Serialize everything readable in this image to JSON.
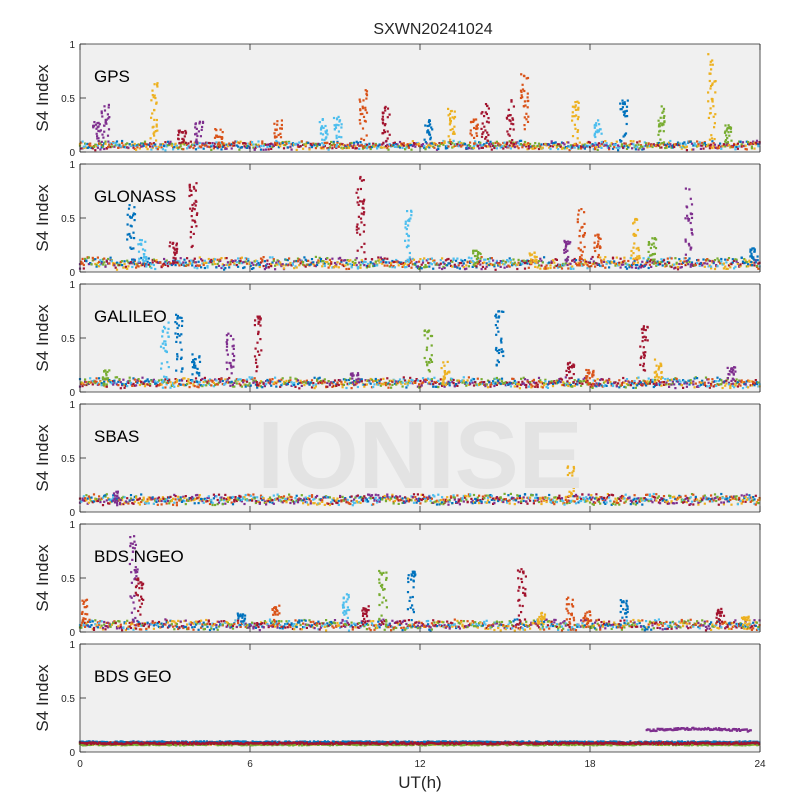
{
  "figure": {
    "title": "SXWN20241024",
    "watermark": "IONISE",
    "xlabel": "UT(h)",
    "ylabel": "S4 Index"
  },
  "colors": {
    "axes_bg": "#f0f0f0",
    "axis_line": "#262626",
    "watermark": "#e3e3e3",
    "series": [
      "#0072BD",
      "#D95319",
      "#EDB120",
      "#7E2F8E",
      "#77AC30",
      "#4DBEEE",
      "#A2142F"
    ]
  },
  "chart_data": [
    {
      "type": "scatter",
      "panel": "GPS",
      "label": "GPS",
      "xlim": [
        0,
        24
      ],
      "ylim": [
        0,
        1
      ],
      "yticks": [
        0,
        0.5,
        1
      ],
      "ytick_labels": [
        "0",
        "0.5",
        "1"
      ],
      "baseline": [
        0.03,
        0.09
      ],
      "spikes": [
        [
          0.6,
          0.28,
          3
        ],
        [
          0.9,
          0.45,
          3
        ],
        [
          2.6,
          0.65,
          2
        ],
        [
          3.6,
          0.2,
          6
        ],
        [
          4.2,
          0.28,
          3
        ],
        [
          4.9,
          0.22,
          1
        ],
        [
          7.0,
          0.3,
          1
        ],
        [
          8.6,
          0.32,
          5
        ],
        [
          9.1,
          0.33,
          5
        ],
        [
          10.0,
          0.58,
          1
        ],
        [
          10.8,
          0.42,
          6
        ],
        [
          12.3,
          0.3,
          0
        ],
        [
          13.1,
          0.4,
          2
        ],
        [
          13.9,
          0.32,
          1
        ],
        [
          14.3,
          0.45,
          6
        ],
        [
          15.2,
          0.48,
          6
        ],
        [
          15.7,
          0.74,
          1
        ],
        [
          17.5,
          0.47,
          2
        ],
        [
          18.3,
          0.3,
          5
        ],
        [
          19.2,
          0.48,
          0
        ],
        [
          20.5,
          0.45,
          4
        ],
        [
          22.3,
          0.92,
          2
        ],
        [
          22.9,
          0.25,
          4
        ]
      ]
    },
    {
      "type": "scatter",
      "panel": "GLONASS",
      "label": "GLONASS",
      "xlim": [
        0,
        24
      ],
      "ylim": [
        0,
        1
      ],
      "yticks": [
        0,
        0.5,
        1
      ],
      "ytick_labels": [
        "0",
        "0.5",
        "1"
      ],
      "baseline": [
        0.04,
        0.12
      ],
      "spikes": [
        [
          1.8,
          0.62,
          0
        ],
        [
          2.2,
          0.3,
          5
        ],
        [
          3.3,
          0.28,
          6
        ],
        [
          4.0,
          0.85,
          6
        ],
        [
          9.9,
          0.88,
          6
        ],
        [
          11.6,
          0.58,
          5
        ],
        [
          14.0,
          0.2,
          4
        ],
        [
          16.0,
          0.18,
          2
        ],
        [
          17.2,
          0.3,
          3
        ],
        [
          17.7,
          0.62,
          1
        ],
        [
          18.3,
          0.35,
          1
        ],
        [
          19.6,
          0.52,
          2
        ],
        [
          20.2,
          0.32,
          4
        ],
        [
          21.5,
          0.78,
          3
        ],
        [
          23.8,
          0.22,
          0
        ]
      ]
    },
    {
      "type": "scatter",
      "panel": "GALILEO",
      "label": "GALILEO",
      "xlim": [
        0,
        24
      ],
      "ylim": [
        0,
        1
      ],
      "yticks": [
        0,
        0.5,
        1
      ],
      "ytick_labels": [
        "0",
        "0.5",
        "1"
      ],
      "baseline": [
        0.05,
        0.12
      ],
      "spikes": [
        [
          0.9,
          0.22,
          4
        ],
        [
          3.0,
          0.65,
          5
        ],
        [
          3.5,
          0.72,
          0
        ],
        [
          4.1,
          0.35,
          0
        ],
        [
          5.3,
          0.55,
          3
        ],
        [
          6.3,
          0.7,
          6
        ],
        [
          9.7,
          0.18,
          3
        ],
        [
          12.3,
          0.58,
          4
        ],
        [
          12.9,
          0.28,
          2
        ],
        [
          14.8,
          0.76,
          0
        ],
        [
          17.3,
          0.3,
          6
        ],
        [
          18.0,
          0.22,
          1
        ],
        [
          19.9,
          0.62,
          6
        ],
        [
          20.4,
          0.3,
          2
        ],
        [
          23.0,
          0.23,
          3
        ]
      ]
    },
    {
      "type": "scatter",
      "panel": "SBAS",
      "label": "SBAS",
      "xlim": [
        0,
        24
      ],
      "ylim": [
        0,
        1
      ],
      "yticks": [
        0,
        0.5,
        1
      ],
      "ytick_labels": [
        "0",
        "0.5",
        "1"
      ],
      "baseline": [
        0.08,
        0.15
      ],
      "spikes": [
        [
          1.3,
          0.2,
          3
        ],
        [
          17.3,
          0.43,
          2
        ]
      ]
    },
    {
      "type": "scatter",
      "panel": "BDS NGEO",
      "label": "BDS NGEO",
      "xlim": [
        0,
        24
      ],
      "ylim": [
        0,
        1
      ],
      "yticks": [
        0,
        0.5,
        1
      ],
      "ytick_labels": [
        "0",
        "0.5",
        "1"
      ],
      "baseline": [
        0.03,
        0.1
      ],
      "spikes": [
        [
          0.2,
          0.3,
          1
        ],
        [
          1.9,
          0.9,
          3
        ],
        [
          2.1,
          0.5,
          6
        ],
        [
          5.7,
          0.18,
          0
        ],
        [
          6.9,
          0.25,
          1
        ],
        [
          9.4,
          0.35,
          5
        ],
        [
          10.1,
          0.25,
          6
        ],
        [
          10.7,
          0.6,
          4
        ],
        [
          11.7,
          0.58,
          0
        ],
        [
          15.6,
          0.6,
          6
        ],
        [
          16.3,
          0.18,
          2
        ],
        [
          17.3,
          0.32,
          1
        ],
        [
          17.9,
          0.2,
          1
        ],
        [
          19.2,
          0.3,
          0
        ],
        [
          22.6,
          0.22,
          6
        ],
        [
          23.5,
          0.15,
          2
        ]
      ]
    },
    {
      "type": "scatter",
      "panel": "BDS GEO",
      "label": "BDS GEO",
      "xlim": [
        0,
        24
      ],
      "ylim": [
        0,
        1
      ],
      "xticks": [
        0,
        6,
        12,
        18,
        24
      ],
      "xtick_labels": [
        "0",
        "6",
        "12",
        "18",
        "24"
      ],
      "yticks": [
        0,
        0.5,
        1
      ],
      "ytick_labels": [
        "0",
        "0.5",
        "1"
      ],
      "geo_bands": [
        [
          0.085,
          1
        ],
        [
          0.075,
          2
        ],
        [
          0.07,
          4
        ],
        [
          0.09,
          0
        ],
        [
          0.08,
          6
        ]
      ],
      "geo_segment": {
        "x": [
          20,
          23.7
        ],
        "y": 0.2,
        "color_index": 3
      }
    }
  ]
}
